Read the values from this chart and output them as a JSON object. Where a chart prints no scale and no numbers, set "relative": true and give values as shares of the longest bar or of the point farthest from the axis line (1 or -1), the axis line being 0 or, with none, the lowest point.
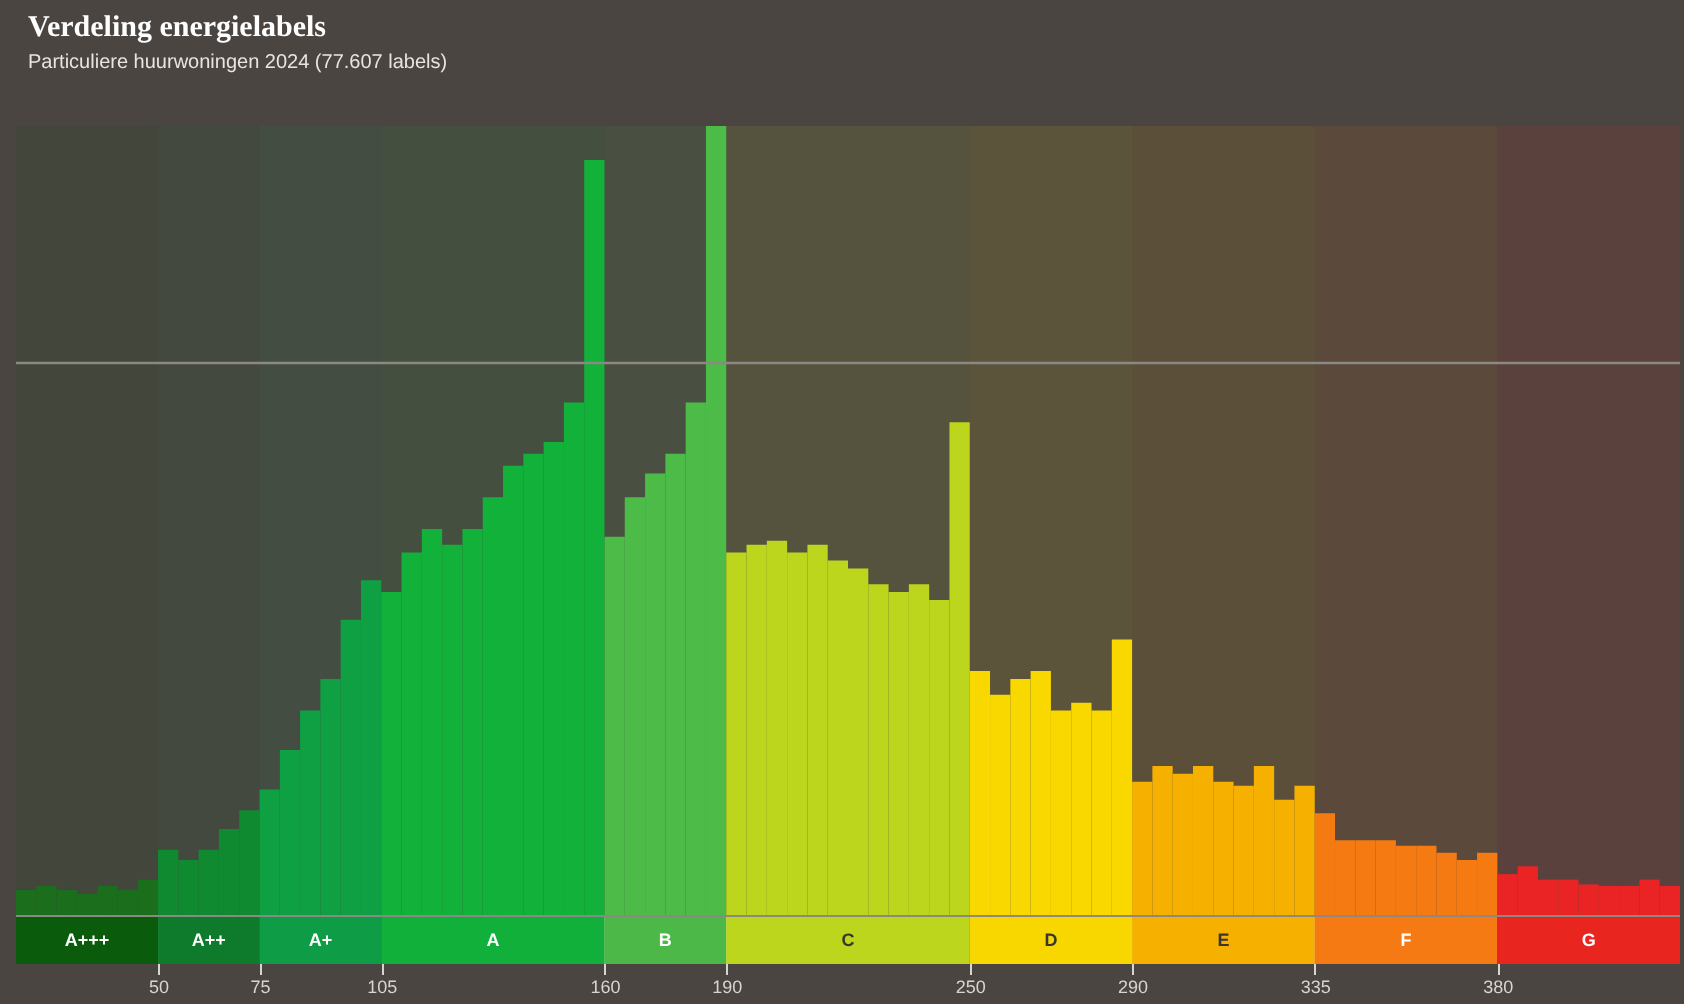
{
  "chart_data": {
    "type": "bar",
    "title": "Verdeling energielabels",
    "subtitle": "Particuliere huurwoningen 2024 (77.607 labels)",
    "relative": true,
    "x": [
      17.5,
      22.5,
      27.5,
      32.5,
      37.5,
      42.5,
      47.5,
      52.5,
      57.5,
      62.5,
      67.5,
      72.5,
      77.5,
      82.5,
      87.5,
      92.5,
      97.5,
      102.5,
      107.5,
      112.5,
      117.5,
      122.5,
      127.5,
      132.5,
      137.5,
      142.5,
      147.5,
      152.5,
      157.5,
      162.5,
      167.5,
      172.5,
      177.5,
      182.5,
      187.5,
      192.5,
      197.5,
      202.5,
      207.5,
      212.5,
      217.5,
      222.5,
      227.5,
      232.5,
      237.5,
      242.5,
      247.5,
      252.5,
      257.5,
      262.5,
      267.5,
      272.5,
      277.5,
      282.5,
      287.5,
      292.5,
      297.5,
      302.5,
      307.5,
      312.5,
      317.5,
      322.5,
      327.5,
      332.5,
      337.5,
      342.5,
      347.5,
      352.5,
      357.5,
      362.5,
      367.5,
      372.5,
      377.5,
      382.5,
      387.5,
      392.5,
      397.5,
      402.5,
      407.5,
      412.5,
      417.5,
      422.5
    ],
    "values": [
      0.033,
      0.038,
      0.033,
      0.028,
      0.038,
      0.033,
      0.046,
      0.084,
      0.071,
      0.084,
      0.11,
      0.134,
      0.16,
      0.21,
      0.26,
      0.3,
      0.375,
      0.425,
      0.41,
      0.46,
      0.49,
      0.47,
      0.49,
      0.53,
      0.57,
      0.585,
      0.6,
      0.65,
      0.957,
      0.48,
      0.53,
      0.56,
      0.585,
      0.65,
      1.0,
      0.46,
      0.47,
      0.475,
      0.46,
      0.47,
      0.45,
      0.44,
      0.42,
      0.41,
      0.42,
      0.4,
      0.625,
      0.31,
      0.28,
      0.3,
      0.31,
      0.26,
      0.27,
      0.26,
      0.35,
      0.17,
      0.19,
      0.18,
      0.19,
      0.17,
      0.165,
      0.19,
      0.147,
      0.165,
      0.13,
      0.096,
      0.096,
      0.096,
      0.089,
      0.089,
      0.08,
      0.071,
      0.08,
      0.053,
      0.063,
      0.046,
      0.046,
      0.04,
      0.038,
      0.038,
      0.046,
      0.038
    ],
    "colors": [
      "#1a6e1c",
      "#1a6e1c",
      "#1a6e1c",
      "#1a6e1c",
      "#1a6e1c",
      "#1a6e1c",
      "#1a6e1c",
      "#0f8a30",
      "#0f8a30",
      "#0f8a30",
      "#0f8a30",
      "#0f8a30",
      "#0ea043",
      "#0ea043",
      "#0ea043",
      "#0ea043",
      "#0ea043",
      "#0ea043",
      "#12b23a",
      "#12b23a",
      "#12b23a",
      "#12b23a",
      "#12b23a",
      "#12b23a",
      "#12b23a",
      "#12b23a",
      "#12b23a",
      "#12b23a",
      "#12b23a",
      "#4cbb47",
      "#4cbb47",
      "#4cbb47",
      "#4cbb47",
      "#4cbb47",
      "#4cbb47",
      "#bcd61e",
      "#bcd61e",
      "#bcd61e",
      "#bcd61e",
      "#bcd61e",
      "#bcd61e",
      "#bcd61e",
      "#bcd61e",
      "#bcd61e",
      "#bcd61e",
      "#bcd61e",
      "#bcd61e",
      "#f9d800",
      "#f9d800",
      "#f9d800",
      "#f9d800",
      "#f9d800",
      "#f9d800",
      "#f9d800",
      "#f9d800",
      "#f6b100",
      "#f6b100",
      "#f6b100",
      "#f6b100",
      "#f6b100",
      "#f6b100",
      "#f6b100",
      "#f6b100",
      "#f6b100",
      "#f57a12",
      "#f57a12",
      "#f57a12",
      "#f57a12",
      "#f57a12",
      "#f57a12",
      "#f57a12",
      "#f57a12",
      "#f57a12",
      "#ea2424",
      "#ea2424",
      "#ea2424",
      "#ea2424",
      "#ea2424",
      "#ea2424",
      "#ea2424",
      "#ea2424",
      "#ea2424"
    ],
    "xlim": [
      15,
      425
    ],
    "xticks": [
      50,
      75,
      105,
      160,
      190,
      250,
      290,
      335,
      380
    ],
    "ref_lines": [
      {
        "axis": "y",
        "value": 0.7,
        "color": "#8c8884"
      }
    ],
    "bands": [
      {
        "axis": "x",
        "from": 15,
        "to": 50,
        "label": "A+++",
        "color": "#0a5c0c"
      },
      {
        "axis": "x",
        "from": 50,
        "to": 75,
        "label": "A++",
        "color": "#0d7a2c"
      },
      {
        "axis": "x",
        "from": 75,
        "to": 105,
        "label": "A+",
        "color": "#0e9d46"
      },
      {
        "axis": "x",
        "from": 105,
        "to": 160,
        "label": "A",
        "color": "#10b03a"
      },
      {
        "axis": "x",
        "from": 160,
        "to": 190,
        "label": "B",
        "color": "#4bb847"
      },
      {
        "axis": "x",
        "from": 190,
        "to": 250,
        "label": "C",
        "color": "#bcd61e"
      },
      {
        "axis": "x",
        "from": 250,
        "to": 290,
        "label": "D",
        "color": "#f8d700"
      },
      {
        "axis": "x",
        "from": 290,
        "to": 335,
        "label": "E",
        "color": "#f5b000"
      },
      {
        "axis": "x",
        "from": 335,
        "to": 380,
        "label": "F",
        "color": "#f57a13"
      },
      {
        "axis": "x",
        "from": 380,
        "to": 425,
        "label": "G",
        "color": "#e8251f"
      }
    ]
  }
}
